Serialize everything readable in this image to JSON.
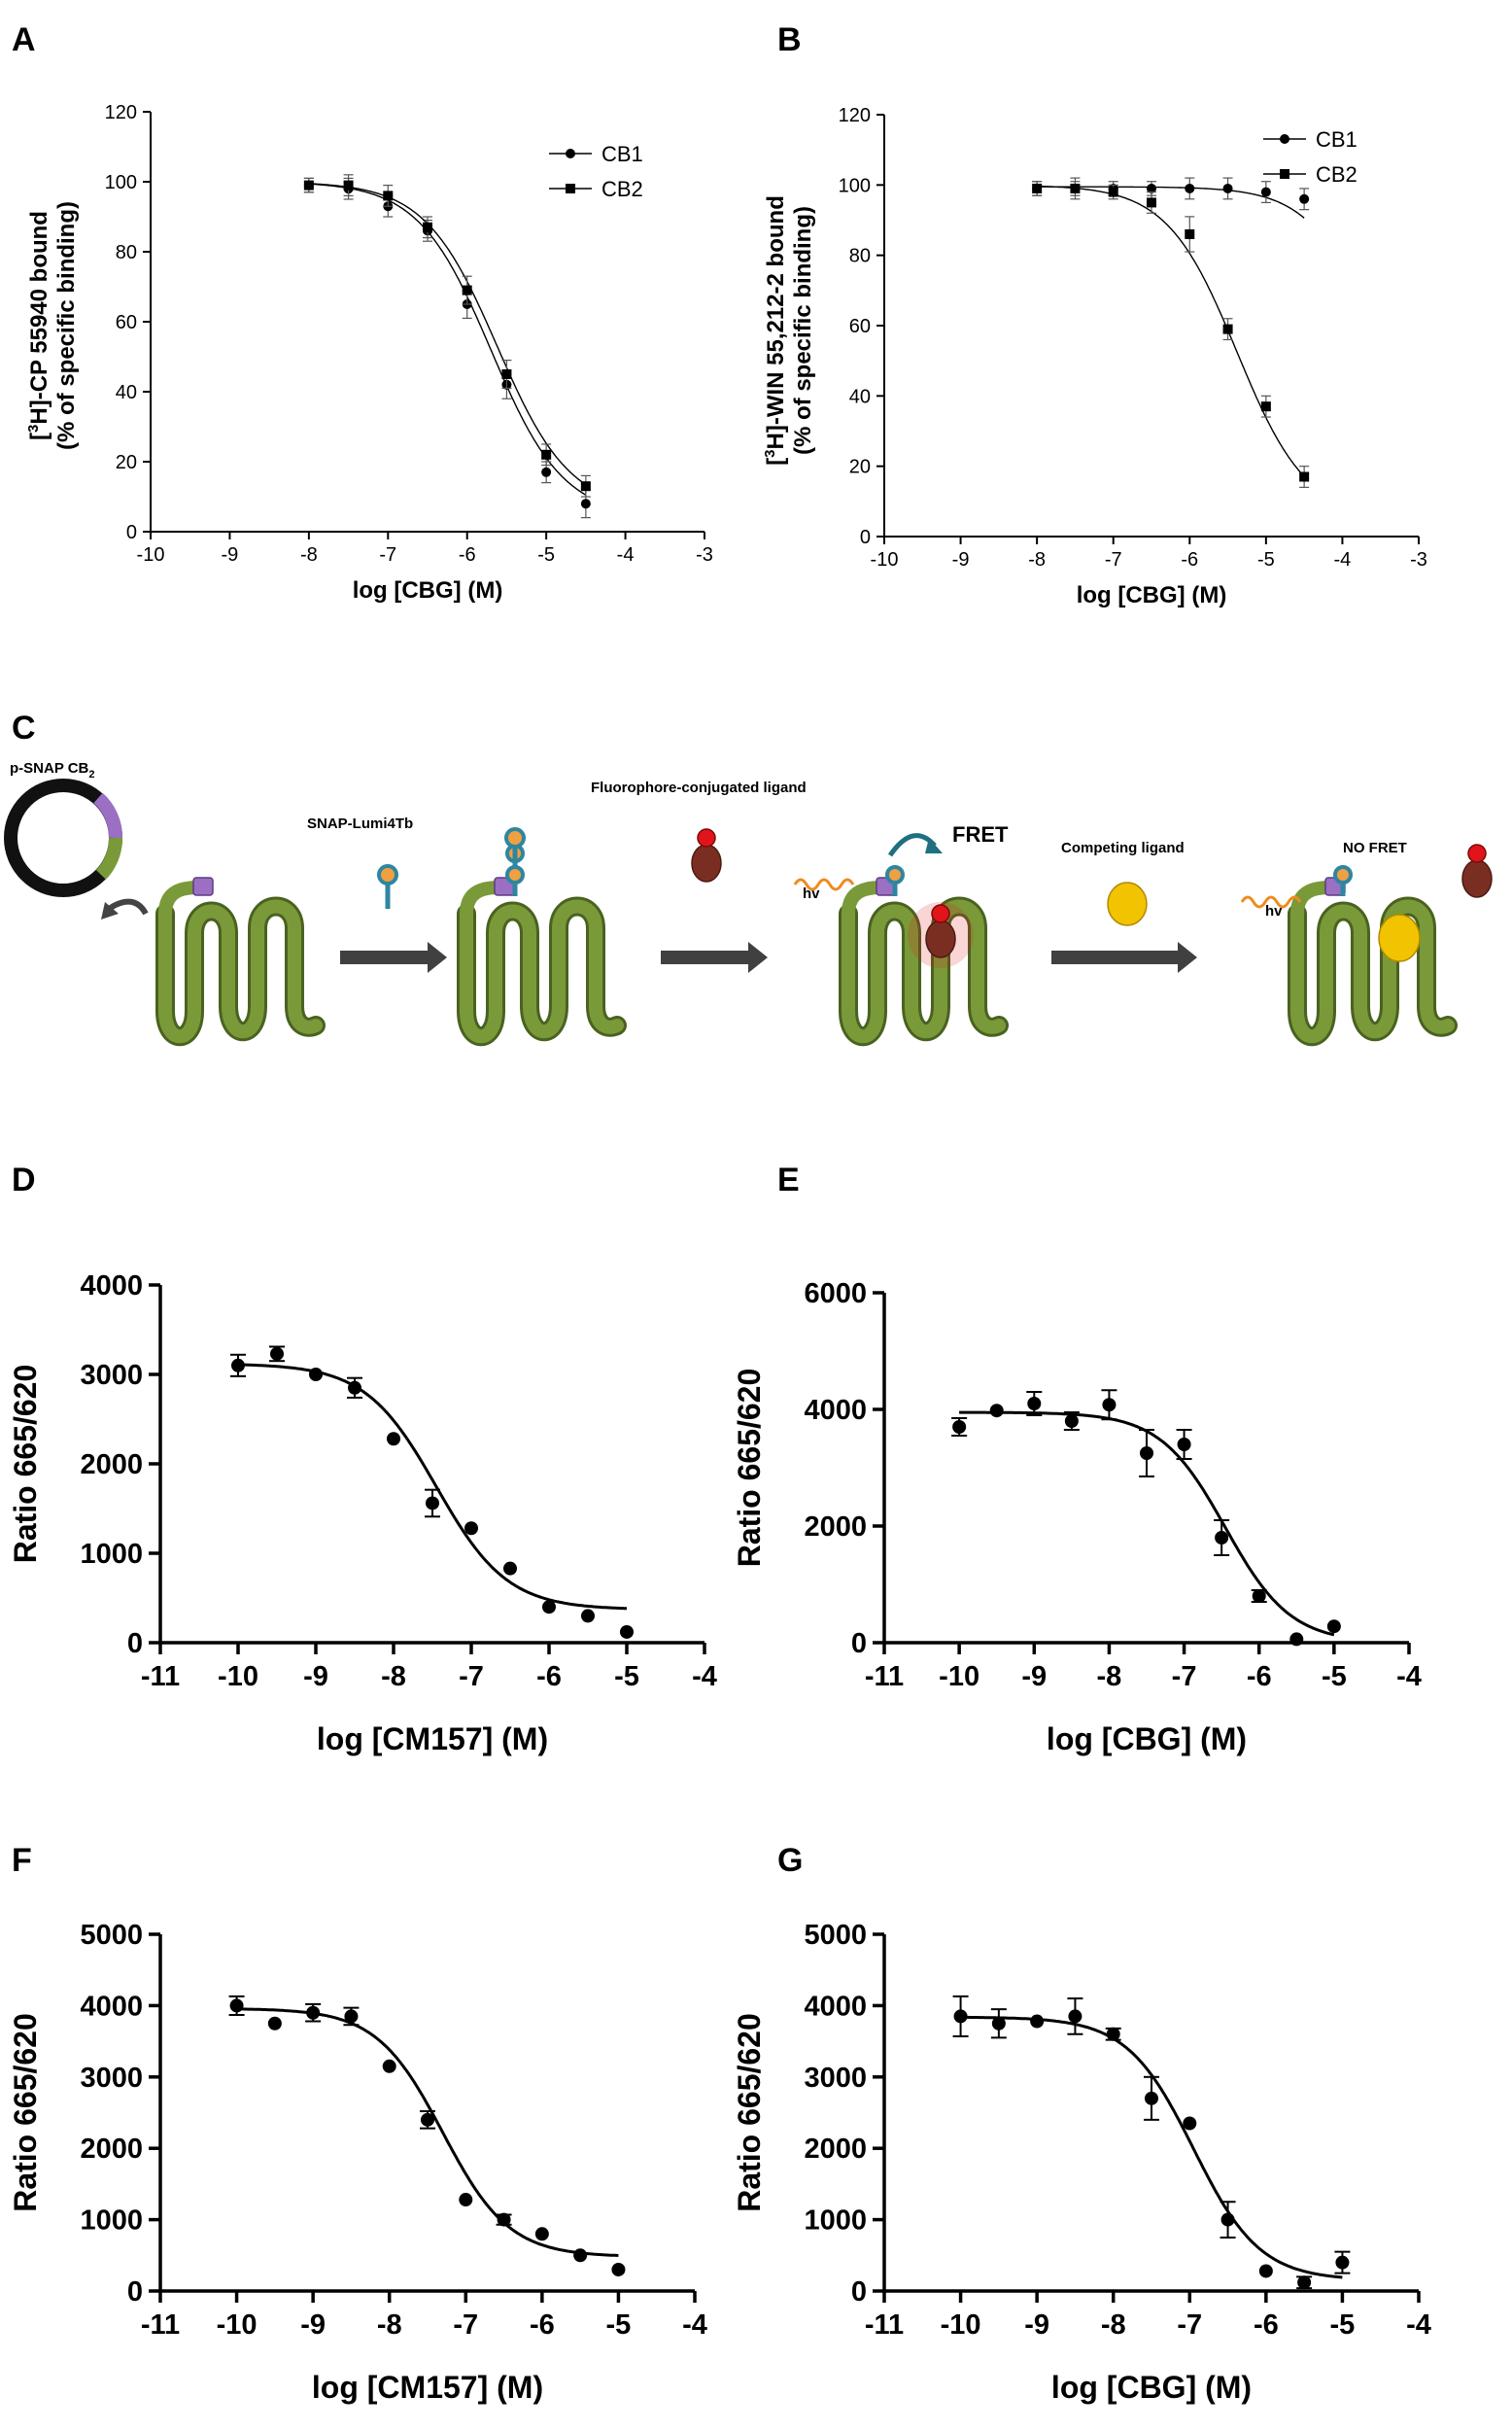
{
  "panel_letters": [
    "A",
    "B",
    "C",
    "D",
    "E",
    "F",
    "G"
  ],
  "diagram": {
    "plasmid_label": "p-SNAP CB",
    "plasmid_sub": "2",
    "step1_label": "SNAP-Lumi4Tb",
    "step2_label": "Fluorophore-conjugated ligand",
    "fret_label": "FRET",
    "hv_label": "hv",
    "step3_label": "Competing ligand",
    "nofret_label": "NO FRET",
    "colors": {
      "receptor": "#7a9a3a",
      "tag": "#9b6fc4",
      "donor_stem": "#2e86a0",
      "donor_head": "#f0a040",
      "ligand_body": "#7a2e22",
      "ligand_head": "#e0141a",
      "competitor": "#f2c300",
      "arrow": "#404040",
      "light_wave": "#f08a1e"
    }
  },
  "chart_data": [
    {
      "panel": "A",
      "type": "scatter",
      "title": "",
      "xlabel": "log [CBG] (M)",
      "ylabel_prefix": "[",
      "ylabel_sup": "3",
      "ylabel_main": "H]-CP 55940 bound",
      "ylabel_line2": "(% of specific binding)",
      "xlim": [
        -10,
        -3
      ],
      "ylim": [
        0,
        120
      ],
      "xticks": [
        -10,
        -9,
        -8,
        -7,
        -6,
        -5,
        -4,
        -3
      ],
      "yticks": [
        0,
        20,
        40,
        60,
        80,
        100,
        120
      ],
      "legend_position": "top-right",
      "series": [
        {
          "name": "CB1",
          "marker": "circle",
          "x": [
            -8,
            -7.5,
            -7,
            -6.5,
            -6,
            -5.5,
            -5,
            -4.5
          ],
          "y": [
            99,
            98,
            93,
            86,
            65,
            42,
            17,
            8
          ],
          "err": [
            2,
            3,
            3,
            3,
            4,
            4,
            3,
            4
          ],
          "fit": {
            "top": 100,
            "bottom": 4,
            "logIC50": -5.7,
            "hill": 0.95
          }
        },
        {
          "name": "CB2",
          "marker": "square",
          "x": [
            -8,
            -7.5,
            -7,
            -6.5,
            -6,
            -5.5,
            -5,
            -4.5
          ],
          "y": [
            99,
            99,
            96,
            87,
            69,
            45,
            22,
            13
          ],
          "err": [
            2,
            3,
            3,
            3,
            4,
            4,
            3,
            3
          ],
          "fit": {
            "top": 100,
            "bottom": 6,
            "logIC50": -5.62,
            "hill": 0.95
          }
        }
      ]
    },
    {
      "panel": "B",
      "type": "scatter",
      "title": "",
      "xlabel": "log [CBG] (M)",
      "ylabel_prefix": "[",
      "ylabel_sup": "3",
      "ylabel_main": "H]-WIN 55,212-2 bound",
      "ylabel_line2": "(% of specific binding)",
      "xlim": [
        -10,
        -3
      ],
      "ylim": [
        0,
        120
      ],
      "xticks": [
        -10,
        -9,
        -8,
        -7,
        -6,
        -5,
        -4,
        -3
      ],
      "yticks": [
        0,
        20,
        40,
        60,
        80,
        100,
        120
      ],
      "legend_position": "top-right",
      "series": [
        {
          "name": "CB1",
          "marker": "circle",
          "x": [
            -8,
            -7.5,
            -7,
            -6.5,
            -6,
            -5.5,
            -5,
            -4.5
          ],
          "y": [
            99,
            99,
            99,
            99,
            99,
            99,
            98,
            96
          ],
          "err": [
            2,
            2,
            2,
            2,
            3,
            3,
            3,
            3
          ],
          "fit": {
            "top": 99.5,
            "bottom": 20,
            "logIC50": -3.6,
            "hill": 1.0
          }
        },
        {
          "name": "CB2",
          "marker": "square",
          "x": [
            -8,
            -7.5,
            -7,
            -6.5,
            -6,
            -5.5,
            -5,
            -4.5
          ],
          "y": [
            99,
            99,
            98,
            95,
            86,
            59,
            37,
            17
          ],
          "err": [
            2,
            3,
            2,
            3,
            5,
            3,
            3,
            3
          ],
          "fit": {
            "top": 100,
            "bottom": 5,
            "logIC50": -5.38,
            "hill": 0.95
          }
        }
      ]
    },
    {
      "panel": "D",
      "type": "scatter",
      "title": "",
      "xlabel": "log [CM157] (M)",
      "ylabel": "Ratio 665/620",
      "xlim": [
        -11,
        -4
      ],
      "ylim": [
        0,
        4000
      ],
      "xticks": [
        -11,
        -10,
        -9,
        -8,
        -7,
        -6,
        -5,
        -4
      ],
      "yticks": [
        0,
        1000,
        2000,
        3000,
        4000
      ],
      "series": [
        {
          "name": "",
          "marker": "circle",
          "x": [
            -10,
            -9.5,
            -9,
            -8.5,
            -8,
            -7.5,
            -7,
            -6.5,
            -6,
            -5.5,
            -5
          ],
          "y": [
            3100,
            3230,
            3000,
            2850,
            2280,
            1560,
            1280,
            830,
            400,
            300,
            120
          ],
          "err": [
            120,
            80,
            0,
            110,
            0,
            150,
            0,
            0,
            0,
            0,
            0
          ],
          "fit": {
            "top": 3120,
            "bottom": 370,
            "logIC50": -7.45,
            "hill": 0.95
          }
        }
      ]
    },
    {
      "panel": "E",
      "type": "scatter",
      "title": "",
      "xlabel": "log [CBG] (M)",
      "ylabel": "Ratio 665/620",
      "xlim": [
        -11,
        -4
      ],
      "ylim": [
        0,
        6000
      ],
      "xticks": [
        -11,
        -10,
        -9,
        -8,
        -7,
        -6,
        -5,
        -4
      ],
      "yticks": [
        0,
        2000,
        4000,
        6000
      ],
      "series": [
        {
          "name": "",
          "marker": "circle",
          "x": [
            -10,
            -9.5,
            -9,
            -8.5,
            -8,
            -7.5,
            -7,
            -6.5,
            -6,
            -5.5,
            -5
          ],
          "y": [
            3700,
            3980,
            4100,
            3800,
            4080,
            3250,
            3400,
            1800,
            800,
            60,
            280
          ],
          "err": [
            150,
            0,
            200,
            150,
            250,
            400,
            250,
            300,
            100,
            0,
            0
          ],
          "fit": {
            "top": 3950,
            "bottom": 0,
            "logIC50": -6.45,
            "hill": 1.0
          }
        }
      ]
    },
    {
      "panel": "F",
      "type": "scatter",
      "title": "",
      "xlabel": "log [CM157] (M)",
      "ylabel": "Ratio 665/620",
      "xlim": [
        -11,
        -4
      ],
      "ylim": [
        0,
        5000
      ],
      "xticks": [
        -11,
        -10,
        -9,
        -8,
        -7,
        -6,
        -5,
        -4
      ],
      "yticks": [
        0,
        1000,
        2000,
        3000,
        4000,
        5000
      ],
      "series": [
        {
          "name": "",
          "marker": "circle",
          "x": [
            -10,
            -9.5,
            -9,
            -8.5,
            -8,
            -7.5,
            -7,
            -6.5,
            -6,
            -5.5,
            -5
          ],
          "y": [
            4000,
            3750,
            3900,
            3850,
            3150,
            2400,
            1280,
            1000,
            800,
            500,
            300
          ],
          "err": [
            130,
            0,
            120,
            120,
            0,
            120,
            0,
            70,
            0,
            0,
            0
          ],
          "fit": {
            "top": 3960,
            "bottom": 480,
            "logIC50": -7.3,
            "hill": 1.0
          }
        }
      ]
    },
    {
      "panel": "G",
      "type": "scatter",
      "title": "",
      "xlabel": "log [CBG] (M)",
      "ylabel": "Ratio 665/620",
      "xlim": [
        -11,
        -4
      ],
      "ylim": [
        0,
        5000
      ],
      "xticks": [
        -11,
        -10,
        -9,
        -8,
        -7,
        -6,
        -5,
        -4
      ],
      "yticks": [
        0,
        1000,
        2000,
        3000,
        4000,
        5000
      ],
      "series": [
        {
          "name": "",
          "marker": "circle",
          "x": [
            -10,
            -9.5,
            -9,
            -8.5,
            -8,
            -7.5,
            -7,
            -6.5,
            -6,
            -5.5,
            -5
          ],
          "y": [
            3850,
            3750,
            3780,
            3850,
            3600,
            2700,
            2350,
            1000,
            280,
            120,
            400
          ],
          "err": [
            280,
            200,
            0,
            250,
            80,
            300,
            0,
            250,
            0,
            80,
            150
          ],
          "fit": {
            "top": 3840,
            "bottom": 150,
            "logIC50": -6.95,
            "hill": 1.0
          }
        }
      ]
    }
  ]
}
